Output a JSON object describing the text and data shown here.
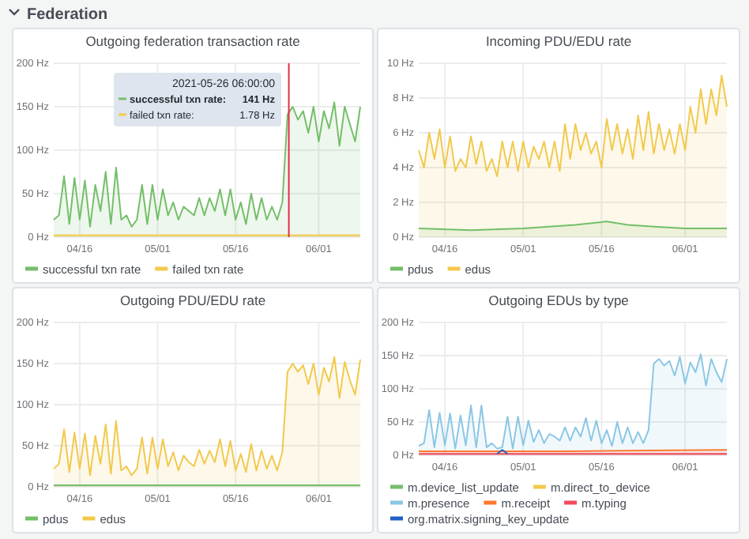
{
  "chart_data": [
    {
      "type": "other",
      "title": "Federation"
    },
    {
      "type": "area",
      "title": "Outgoing federation transaction rate",
      "x": [
        "2021-04-11",
        "2021-04-12",
        "2021-04-13",
        "2021-04-14",
        "2021-04-15",
        "2021-04-16",
        "2021-04-17",
        "2021-04-18",
        "2021-04-19",
        "2021-04-20",
        "2021-04-21",
        "2021-04-22",
        "2021-04-23",
        "2021-04-24",
        "2021-04-25",
        "2021-04-26",
        "2021-04-27",
        "2021-04-28",
        "2021-04-29",
        "2021-04-30",
        "2021-05-01",
        "2021-05-02",
        "2021-05-03",
        "2021-05-04",
        "2021-05-05",
        "2021-05-06",
        "2021-05-07",
        "2021-05-08",
        "2021-05-09",
        "2021-05-10",
        "2021-05-11",
        "2021-05-12",
        "2021-05-13",
        "2021-05-14",
        "2021-05-15",
        "2021-05-16",
        "2021-05-17",
        "2021-05-18",
        "2021-05-19",
        "2021-05-20",
        "2021-05-21",
        "2021-05-22",
        "2021-05-23",
        "2021-05-24",
        "2021-05-25",
        "2021-05-26",
        "2021-05-27",
        "2021-05-28",
        "2021-05-29",
        "2021-05-30",
        "2021-05-31",
        "2021-06-01",
        "2021-06-02",
        "2021-06-03",
        "2021-06-04",
        "2021-06-05",
        "2021-06-06",
        "2021-06-07",
        "2021-06-08",
        "2021-06-09"
      ],
      "xlim": [
        "2021-04-11",
        "2021-06-09"
      ],
      "xticks": [
        {
          "value": "2021-04-16",
          "label": "04/16"
        },
        {
          "value": "2021-05-01",
          "label": "05/01"
        },
        {
          "value": "2021-05-16",
          "label": "05/16"
        },
        {
          "value": "2021-06-01",
          "label": "06/01"
        }
      ],
      "ylim": [
        0,
        200
      ],
      "yticks": [
        {
          "value": 0,
          "label": "0 Hz"
        },
        {
          "value": 50,
          "label": "50 Hz"
        },
        {
          "value": 100,
          "label": "100 Hz"
        },
        {
          "value": 150,
          "label": "150 Hz"
        },
        {
          "value": 200,
          "label": "200 Hz"
        }
      ],
      "grid": true,
      "legend": "bottom",
      "ref_lines": [
        {
          "axis": "x",
          "value": "2021-05-26T06:00",
          "color": "#e02f44"
        }
      ],
      "annotations": [
        "2021-05-26 06:00:00",
        "successful txn rate:",
        "141 Hz",
        "failed txn rate:",
        "1.78 Hz"
      ],
      "series": [
        {
          "name": "successful txn rate",
          "color": "#73bf69",
          "values": [
            20,
            25,
            70,
            15,
            68,
            20,
            65,
            12,
            60,
            30,
            75,
            15,
            80,
            20,
            25,
            12,
            20,
            60,
            15,
            60,
            20,
            55,
            25,
            40,
            20,
            35,
            30,
            25,
            45,
            25,
            45,
            30,
            55,
            25,
            55,
            20,
            40,
            15,
            50,
            20,
            45,
            20,
            35,
            20,
            40,
            141,
            150,
            135,
            145,
            120,
            150,
            110,
            145,
            125,
            155,
            105,
            150,
            130,
            110,
            150
          ]
        },
        {
          "name": "failed txn rate",
          "color": "#f2c94c",
          "x": [
            "2021-04-11",
            "2021-05-01",
            "2021-05-26T06:00",
            "2021-06-09"
          ],
          "values": [
            2,
            2,
            2,
            2
          ]
        }
      ]
    },
    {
      "type": "area",
      "title": "Incoming PDU/EDU rate",
      "x": [
        "2021-04-11",
        "2021-04-12",
        "2021-04-13",
        "2021-04-14",
        "2021-04-15",
        "2021-04-16",
        "2021-04-17",
        "2021-04-18",
        "2021-04-19",
        "2021-04-20",
        "2021-04-21",
        "2021-04-22",
        "2021-04-23",
        "2021-04-24",
        "2021-04-25",
        "2021-04-26",
        "2021-04-27",
        "2021-04-28",
        "2021-04-29",
        "2021-04-30",
        "2021-05-01",
        "2021-05-02",
        "2021-05-03",
        "2021-05-04",
        "2021-05-05",
        "2021-05-06",
        "2021-05-07",
        "2021-05-08",
        "2021-05-09",
        "2021-05-10",
        "2021-05-11",
        "2021-05-12",
        "2021-05-13",
        "2021-05-14",
        "2021-05-15",
        "2021-05-16",
        "2021-05-17",
        "2021-05-18",
        "2021-05-19",
        "2021-05-20",
        "2021-05-21",
        "2021-05-22",
        "2021-05-23",
        "2021-05-24",
        "2021-05-25",
        "2021-05-26",
        "2021-05-27",
        "2021-05-28",
        "2021-05-29",
        "2021-05-30",
        "2021-05-31",
        "2021-06-01",
        "2021-06-02",
        "2021-06-03",
        "2021-06-04",
        "2021-06-05",
        "2021-06-06",
        "2021-06-07",
        "2021-06-08",
        "2021-06-09"
      ],
      "xlim": [
        "2021-04-11",
        "2021-06-09"
      ],
      "xticks": [
        {
          "value": "2021-04-16",
          "label": "04/16"
        },
        {
          "value": "2021-05-01",
          "label": "05/01"
        },
        {
          "value": "2021-05-16",
          "label": "05/16"
        },
        {
          "value": "2021-06-01",
          "label": "06/01"
        }
      ],
      "ylim": [
        0,
        10
      ],
      "yticks": [
        {
          "value": 0,
          "label": "0 Hz"
        },
        {
          "value": 2,
          "label": "2 Hz"
        },
        {
          "value": 4,
          "label": "4 Hz"
        },
        {
          "value": 6,
          "label": "6 Hz"
        },
        {
          "value": 8,
          "label": "8 Hz"
        },
        {
          "value": 10,
          "label": "10 Hz"
        }
      ],
      "grid": true,
      "legend": "bottom",
      "series": [
        {
          "name": "pdus",
          "color": "#73bf69",
          "x": [
            "2021-04-11",
            "2021-04-21",
            "2021-05-01",
            "2021-05-11",
            "2021-05-17",
            "2021-05-21",
            "2021-05-26",
            "2021-06-01",
            "2021-06-09"
          ],
          "values": [
            0.5,
            0.4,
            0.5,
            0.7,
            0.9,
            0.7,
            0.6,
            0.5,
            0.5
          ]
        },
        {
          "name": "edus",
          "color": "#f2c94c",
          "values": [
            5,
            4,
            6,
            4.5,
            6.2,
            4,
            5.8,
            3.8,
            4.5,
            4,
            5.8,
            4.2,
            5.5,
            3.8,
            4.5,
            3.5,
            5.5,
            4,
            5.5,
            3.8,
            5.5,
            4,
            5.2,
            4.5,
            5.5,
            4,
            5.5,
            3.8,
            6.5,
            4.5,
            6.5,
            5,
            6,
            4.8,
            5.5,
            4,
            6.8,
            5,
            6.5,
            4.8,
            6.2,
            4.5,
            7,
            5,
            7.2,
            4.8,
            6.5,
            5,
            6.2,
            4.8,
            6.5,
            5,
            7.5,
            6,
            8.5,
            6.5,
            8.5,
            7,
            9.3,
            7.5
          ]
        }
      ]
    },
    {
      "type": "area",
      "title": "Outgoing PDU/EDU rate",
      "x": [
        "2021-04-11",
        "2021-04-12",
        "2021-04-13",
        "2021-04-14",
        "2021-04-15",
        "2021-04-16",
        "2021-04-17",
        "2021-04-18",
        "2021-04-19",
        "2021-04-20",
        "2021-04-21",
        "2021-04-22",
        "2021-04-23",
        "2021-04-24",
        "2021-04-25",
        "2021-04-26",
        "2021-04-27",
        "2021-04-28",
        "2021-04-29",
        "2021-04-30",
        "2021-05-01",
        "2021-05-02",
        "2021-05-03",
        "2021-05-04",
        "2021-05-05",
        "2021-05-06",
        "2021-05-07",
        "2021-05-08",
        "2021-05-09",
        "2021-05-10",
        "2021-05-11",
        "2021-05-12",
        "2021-05-13",
        "2021-05-14",
        "2021-05-15",
        "2021-05-16",
        "2021-05-17",
        "2021-05-18",
        "2021-05-19",
        "2021-05-20",
        "2021-05-21",
        "2021-05-22",
        "2021-05-23",
        "2021-05-24",
        "2021-05-25",
        "2021-05-26",
        "2021-05-27",
        "2021-05-28",
        "2021-05-29",
        "2021-05-30",
        "2021-05-31",
        "2021-06-01",
        "2021-06-02",
        "2021-06-03",
        "2021-06-04",
        "2021-06-05",
        "2021-06-06",
        "2021-06-07",
        "2021-06-08",
        "2021-06-09"
      ],
      "xlim": [
        "2021-04-11",
        "2021-06-09"
      ],
      "xticks": [
        {
          "value": "2021-04-16",
          "label": "04/16"
        },
        {
          "value": "2021-05-01",
          "label": "05/01"
        },
        {
          "value": "2021-05-16",
          "label": "05/16"
        },
        {
          "value": "2021-06-01",
          "label": "06/01"
        }
      ],
      "ylim": [
        0,
        200
      ],
      "yticks": [
        {
          "value": 0,
          "label": "0 Hz"
        },
        {
          "value": 50,
          "label": "50 Hz"
        },
        {
          "value": 100,
          "label": "100 Hz"
        },
        {
          "value": 150,
          "label": "150 Hz"
        },
        {
          "value": 200,
          "label": "200 Hz"
        }
      ],
      "grid": true,
      "legend": "bottom",
      "series": [
        {
          "name": "pdus",
          "color": "#73bf69",
          "x": [
            "2021-04-11",
            "2021-05-01",
            "2021-05-26",
            "2021-06-09"
          ],
          "values": [
            2,
            2,
            2,
            2
          ]
        },
        {
          "name": "edus",
          "color": "#f2c94c",
          "values": [
            22,
            28,
            70,
            18,
            66,
            22,
            65,
            14,
            62,
            28,
            76,
            16,
            80,
            20,
            25,
            14,
            22,
            60,
            16,
            60,
            22,
            58,
            25,
            42,
            20,
            38,
            30,
            25,
            45,
            28,
            44,
            30,
            58,
            25,
            56,
            20,
            40,
            18,
            52,
            20,
            44,
            22,
            38,
            20,
            42,
            140,
            150,
            140,
            148,
            125,
            150,
            112,
            145,
            128,
            158,
            108,
            152,
            130,
            112,
            155
          ]
        }
      ]
    },
    {
      "type": "area",
      "title": "Outgoing EDUs by type",
      "x": [
        "2021-04-11",
        "2021-04-12",
        "2021-04-13",
        "2021-04-14",
        "2021-04-15",
        "2021-04-16",
        "2021-04-17",
        "2021-04-18",
        "2021-04-19",
        "2021-04-20",
        "2021-04-21",
        "2021-04-22",
        "2021-04-23",
        "2021-04-24",
        "2021-04-25",
        "2021-04-26",
        "2021-04-27",
        "2021-04-28",
        "2021-04-29",
        "2021-04-30",
        "2021-05-01",
        "2021-05-02",
        "2021-05-03",
        "2021-05-04",
        "2021-05-05",
        "2021-05-06",
        "2021-05-07",
        "2021-05-08",
        "2021-05-09",
        "2021-05-10",
        "2021-05-11",
        "2021-05-12",
        "2021-05-13",
        "2021-05-14",
        "2021-05-15",
        "2021-05-16",
        "2021-05-17",
        "2021-05-18",
        "2021-05-19",
        "2021-05-20",
        "2021-05-21",
        "2021-05-22",
        "2021-05-23",
        "2021-05-24",
        "2021-05-25",
        "2021-05-26",
        "2021-05-27",
        "2021-05-28",
        "2021-05-29",
        "2021-05-30",
        "2021-05-31",
        "2021-06-01",
        "2021-06-02",
        "2021-06-03",
        "2021-06-04",
        "2021-06-05",
        "2021-06-06",
        "2021-06-07",
        "2021-06-08",
        "2021-06-09"
      ],
      "xlim": [
        "2021-04-11",
        "2021-06-09"
      ],
      "xticks": [
        {
          "value": "2021-04-16",
          "label": "04/16"
        },
        {
          "value": "2021-05-01",
          "label": "05/01"
        },
        {
          "value": "2021-05-16",
          "label": "05/16"
        },
        {
          "value": "2021-06-01",
          "label": "06/01"
        }
      ],
      "ylim": [
        0,
        200
      ],
      "yticks": [
        {
          "value": 0,
          "label": "0 Hz"
        },
        {
          "value": 50,
          "label": "50 Hz"
        },
        {
          "value": 100,
          "label": "100 Hz"
        },
        {
          "value": 150,
          "label": "150 Hz"
        },
        {
          "value": 200,
          "label": "200 Hz"
        }
      ],
      "grid": true,
      "legend": "bottom",
      "series": [
        {
          "name": "m.device_list_update",
          "color": "#73bf69",
          "values": [
            null,
            null,
            null,
            null,
            null,
            null,
            null,
            null,
            null,
            null,
            null,
            null,
            null,
            null,
            null,
            null,
            null,
            null,
            null,
            null,
            null,
            null,
            null,
            null,
            null,
            null,
            null,
            null,
            null,
            null,
            null,
            null,
            null,
            null,
            null,
            null,
            null,
            null,
            null,
            null,
            null,
            null,
            null,
            null,
            null,
            null,
            null,
            null,
            null,
            null,
            null,
            null,
            null,
            null,
            null,
            null,
            null,
            null,
            null,
            null
          ]
        },
        {
          "name": "m.direct_to_device",
          "color": "#f2c94c",
          "values": [
            null,
            null,
            null,
            null,
            null,
            null,
            null,
            null,
            null,
            null,
            null,
            null,
            null,
            null,
            null,
            null,
            null,
            null,
            null,
            null,
            null,
            null,
            null,
            null,
            null,
            null,
            null,
            null,
            null,
            null,
            null,
            null,
            null,
            null,
            null,
            null,
            null,
            null,
            null,
            null,
            null,
            null,
            null,
            null,
            null,
            null,
            null,
            null,
            null,
            null,
            null,
            null,
            null,
            null,
            null,
            null,
            null,
            null,
            null,
            null
          ]
        },
        {
          "name": "m.presence",
          "color": "#8ac7e5",
          "values": [
            14,
            18,
            68,
            12,
            64,
            15,
            63,
            10,
            60,
            15,
            75,
            12,
            75,
            12,
            18,
            10,
            12,
            58,
            10,
            58,
            15,
            52,
            20,
            38,
            18,
            32,
            28,
            22,
            42,
            22,
            42,
            28,
            56,
            22,
            52,
            18,
            38,
            14,
            50,
            18,
            42,
            18,
            35,
            18,
            38,
            138,
            145,
            135,
            142,
            120,
            148,
            108,
            140,
            125,
            152,
            105,
            145,
            125,
            110,
            145
          ]
        },
        {
          "name": "m.receipt",
          "color": "#ff7830",
          "x": [
            "2021-04-11",
            "2021-04-25",
            "2021-05-10",
            "2021-05-25",
            "2021-06-09"
          ],
          "values": [
            6,
            6,
            6,
            7,
            8
          ]
        },
        {
          "name": "m.typing",
          "color": "#f2495c",
          "x": [
            "2021-04-11",
            "2021-04-25",
            "2021-05-10",
            "2021-05-25",
            "2021-06-09"
          ],
          "values": [
            2,
            2,
            2,
            2,
            2
          ]
        },
        {
          "name": "org.matrix.signing_key_update",
          "type": "line",
          "color": "#1f60c4",
          "x": [
            "2021-04-26",
            "2021-04-27",
            "2021-04-28"
          ],
          "values": [
            2,
            8,
            2
          ]
        }
      ]
    }
  ]
}
